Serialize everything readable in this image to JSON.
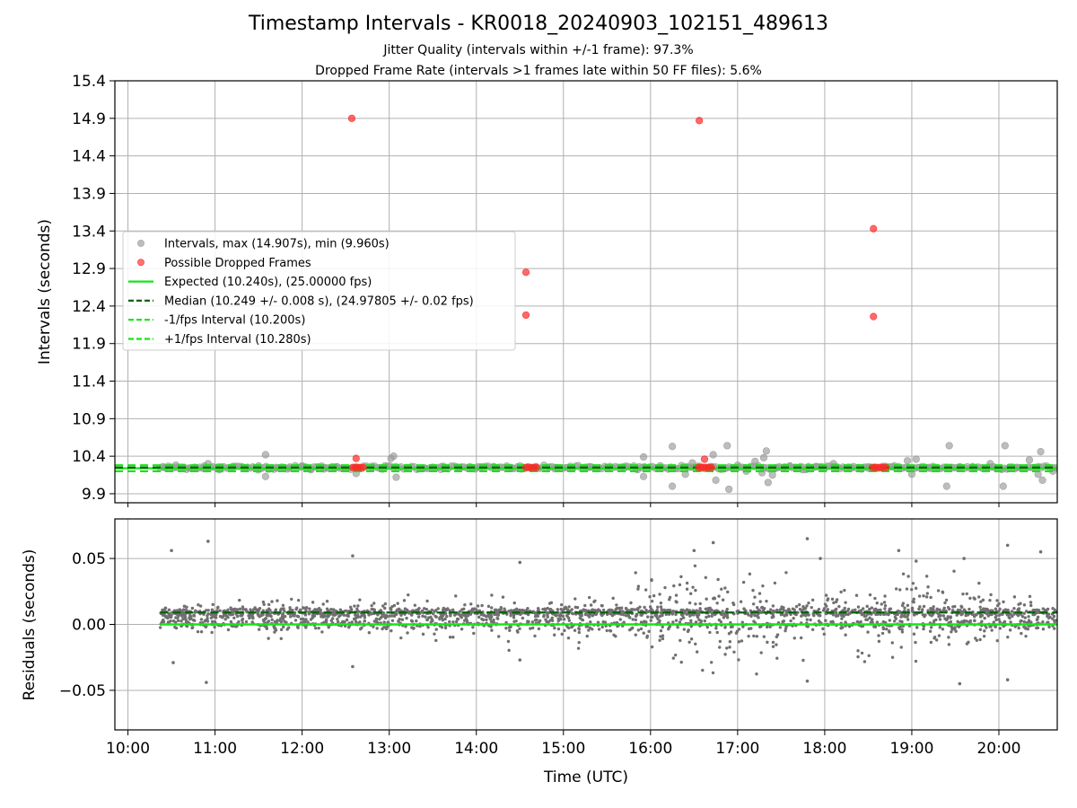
{
  "title": "Timestamp Intervals - KR0018_20240903_102151_489613",
  "subtitle_lines": [
    "Jitter Quality (intervals within +/-1 frame): 97.3%",
    "Dropped Frame Rate (intervals >1 frames late within 50 FF files): 5.6%"
  ],
  "colors": {
    "intervals": "#999999",
    "dropped": "#ff2a2a",
    "expected": "#14e614",
    "median": "#006400",
    "residual_points": "#707070",
    "grid": "#b0b0b0"
  },
  "chart_data": [
    {
      "type": "scatter",
      "panel": "intervals",
      "ylabel": "Intervals (seconds)",
      "xlabel": "",
      "xlim_hours": [
        9.85,
        20.67
      ],
      "ylim": [
        9.78,
        15.4
      ],
      "yticks": [
        9.9,
        10.4,
        10.9,
        11.4,
        11.9,
        12.4,
        12.9,
        13.4,
        13.9,
        14.4,
        14.9,
        15.4
      ],
      "ytick_labels": [
        "9.9",
        "10.4",
        "10.9",
        "11.4",
        "11.9",
        "12.4",
        "12.9",
        "13.4",
        "13.9",
        "14.4",
        "14.9",
        "15.4"
      ],
      "grid": true,
      "legend_placement": "center-left",
      "legend": [
        {
          "label": "Intervals, max (14.907s), min (9.960s)",
          "kind": "marker",
          "color": "#999999"
        },
        {
          "label": "Possible Dropped Frames",
          "kind": "marker",
          "color": "#ff2a2a"
        },
        {
          "label": "Expected (10.240s), (25.00000 fps)",
          "kind": "solid",
          "color": "#14e614"
        },
        {
          "label": "Median (10.249 +/- 0.008 s), (24.97805 +/- 0.02 fps)",
          "kind": "dashed",
          "color": "#006400"
        },
        {
          "label": "-1/fps Interval (10.200s)",
          "kind": "dashed",
          "color": "#14e614"
        },
        {
          "label": "+1/fps Interval (10.280s)",
          "kind": "dashed",
          "color": "#14e614"
        }
      ],
      "reference_lines": {
        "expected": 10.24,
        "median": 10.249,
        "minus_one_frame": 10.2,
        "plus_one_frame": 10.28
      },
      "series": [
        {
          "name": "Intervals, max (14.907s), min (9.960s)",
          "points": [
            [
              10.42,
              10.25
            ],
            [
              10.55,
              10.28
            ],
            [
              10.7,
              10.24
            ],
            [
              10.88,
              10.27
            ],
            [
              10.92,
              10.3
            ],
            [
              11.05,
              10.22
            ],
            [
              11.2,
              10.26
            ],
            [
              11.35,
              10.24
            ],
            [
              11.5,
              10.27
            ],
            [
              11.58,
              10.42
            ],
            [
              11.58,
              10.13
            ],
            [
              11.7,
              10.25
            ],
            [
              11.85,
              10.24
            ],
            [
              12.0,
              10.27
            ],
            [
              12.1,
              10.22
            ],
            [
              12.25,
              10.25
            ],
            [
              12.4,
              10.26
            ],
            [
              12.5,
              10.24
            ],
            [
              12.62,
              10.17
            ],
            [
              12.8,
              10.25
            ],
            [
              12.95,
              10.27
            ],
            [
              13.02,
              10.37
            ],
            [
              13.05,
              10.4
            ],
            [
              13.08,
              10.12
            ],
            [
              13.2,
              10.25
            ],
            [
              13.4,
              10.24
            ],
            [
              13.6,
              10.26
            ],
            [
              13.8,
              10.25
            ],
            [
              14.0,
              10.24
            ],
            [
              14.2,
              10.26
            ],
            [
              14.4,
              10.25
            ],
            [
              14.52,
              10.23
            ],
            [
              14.9,
              10.25
            ],
            [
              15.1,
              10.24
            ],
            [
              15.3,
              10.26
            ],
            [
              15.5,
              10.25
            ],
            [
              15.7,
              10.24
            ],
            [
              15.85,
              10.22
            ],
            [
              15.92,
              10.13
            ],
            [
              15.92,
              10.39
            ],
            [
              16.1,
              10.25
            ],
            [
              16.25,
              10.53
            ],
            [
              16.25,
              10.0
            ],
            [
              16.4,
              10.16
            ],
            [
              16.48,
              10.31
            ],
            [
              16.72,
              10.42
            ],
            [
              16.75,
              10.08
            ],
            [
              16.88,
              10.54
            ],
            [
              16.9,
              9.96
            ],
            [
              17.0,
              10.28
            ],
            [
              17.1,
              10.2
            ],
            [
              17.2,
              10.33
            ],
            [
              17.28,
              10.18
            ],
            [
              17.3,
              10.38
            ],
            [
              17.33,
              10.47
            ],
            [
              17.35,
              10.05
            ],
            [
              17.4,
              10.15
            ],
            [
              17.45,
              10.25
            ],
            [
              17.6,
              10.27
            ],
            [
              17.75,
              10.22
            ],
            [
              17.9,
              10.26
            ],
            [
              18.0,
              10.24
            ],
            [
              18.1,
              10.3
            ],
            [
              18.3,
              10.25
            ],
            [
              18.5,
              10.24
            ],
            [
              18.8,
              10.27
            ],
            [
              18.95,
              10.34
            ],
            [
              19.0,
              10.16
            ],
            [
              19.05,
              10.36
            ],
            [
              19.2,
              10.25
            ],
            [
              19.3,
              10.24
            ],
            [
              19.4,
              10.0
            ],
            [
              19.43,
              10.54
            ],
            [
              19.55,
              10.26
            ],
            [
              19.7,
              10.25
            ],
            [
              19.85,
              10.24
            ],
            [
              19.9,
              10.3
            ],
            [
              20.05,
              10.0
            ],
            [
              20.07,
              10.54
            ],
            [
              20.2,
              10.25
            ],
            [
              20.35,
              10.35
            ],
            [
              20.45,
              10.16
            ],
            [
              20.48,
              10.46
            ],
            [
              20.5,
              10.08
            ],
            [
              20.62,
              10.2
            ]
          ]
        },
        {
          "name": "Possible Dropped Frames",
          "points": [
            [
              12.57,
              14.9
            ],
            [
              12.62,
              10.37
            ],
            [
              14.57,
              12.85
            ],
            [
              14.57,
              12.28
            ],
            [
              16.56,
              14.87
            ],
            [
              16.62,
              10.36
            ],
            [
              18.56,
              13.43
            ],
            [
              18.56,
              12.26
            ],
            [
              12.58,
              10.25
            ],
            [
              12.61,
              10.25
            ],
            [
              12.64,
              10.25
            ],
            [
              12.67,
              10.25
            ],
            [
              12.7,
              10.25
            ],
            [
              14.57,
              10.25
            ],
            [
              14.6,
              10.25
            ],
            [
              14.63,
              10.25
            ],
            [
              14.66,
              10.25
            ],
            [
              14.69,
              10.25
            ],
            [
              16.55,
              10.25
            ],
            [
              16.58,
              10.25
            ],
            [
              16.61,
              10.25
            ],
            [
              16.64,
              10.25
            ],
            [
              16.67,
              10.25
            ],
            [
              16.7,
              10.25
            ],
            [
              18.55,
              10.25
            ],
            [
              18.58,
              10.25
            ],
            [
              18.61,
              10.25
            ],
            [
              18.64,
              10.25
            ],
            [
              18.67,
              10.25
            ],
            [
              18.7,
              10.25
            ]
          ]
        }
      ]
    },
    {
      "type": "scatter",
      "panel": "residuals",
      "ylabel": "Residuals (seconds)",
      "xlabel": "Time (UTC)",
      "xlim_hours": [
        9.85,
        20.67
      ],
      "ylim": [
        -0.08,
        0.08
      ],
      "yticks": [
        0.05,
        0.0,
        -0.05
      ],
      "ytick_labels": [
        "0.05",
        "0.00",
        "−0.05"
      ],
      "xticks_hours": [
        10,
        11,
        12,
        13,
        14,
        15,
        16,
        17,
        18,
        19,
        20
      ],
      "xtick_labels": [
        "10:00",
        "11:00",
        "12:00",
        "13:00",
        "14:00",
        "15:00",
        "16:00",
        "17:00",
        "18:00",
        "19:00",
        "20:00"
      ],
      "grid": true,
      "reference_lines": {
        "zero": 0.0,
        "median_offset": 0.009
      },
      "data_range_hours": [
        10.37,
        20.67
      ],
      "spread_profile": [
        [
          10.37,
          0.004
        ],
        [
          12.0,
          0.006
        ],
        [
          14.0,
          0.006
        ],
        [
          15.0,
          0.007
        ],
        [
          15.8,
          0.011
        ],
        [
          16.3,
          0.018
        ],
        [
          17.0,
          0.02
        ],
        [
          17.5,
          0.016
        ],
        [
          18.0,
          0.012
        ],
        [
          18.6,
          0.012
        ],
        [
          19.2,
          0.015
        ],
        [
          19.8,
          0.013
        ],
        [
          20.67,
          0.008
        ]
      ],
      "outliers": [
        [
          10.5,
          0.056
        ],
        [
          10.52,
          -0.029
        ],
        [
          10.92,
          0.063
        ],
        [
          10.9,
          -0.044
        ],
        [
          12.58,
          0.052
        ],
        [
          12.58,
          -0.032
        ],
        [
          14.5,
          0.047
        ],
        [
          14.5,
          -0.027
        ],
        [
          16.5,
          0.056
        ],
        [
          16.72,
          0.062
        ],
        [
          17.8,
          0.065
        ],
        [
          17.8,
          -0.043
        ],
        [
          17.95,
          0.05
        ],
        [
          18.85,
          0.056
        ],
        [
          19.05,
          0.048
        ],
        [
          19.55,
          -0.045
        ],
        [
          19.6,
          0.05
        ],
        [
          20.1,
          0.06
        ],
        [
          20.1,
          -0.042
        ],
        [
          20.48,
          0.055
        ]
      ],
      "point_count_approx": 2400
    }
  ]
}
